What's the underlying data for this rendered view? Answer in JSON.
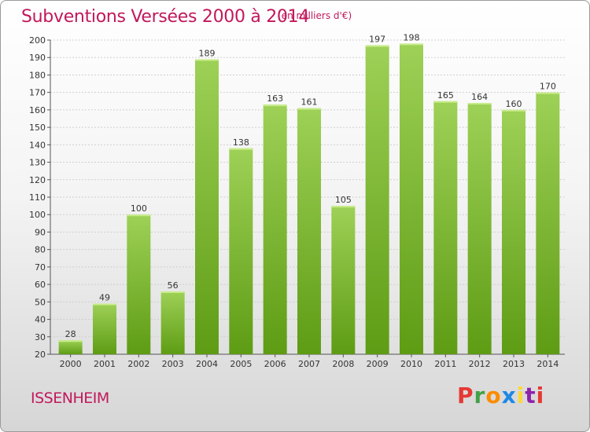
{
  "header": {
    "title": "Subventions Versées 2000 à 2014",
    "subtitle": "(en milliers d'€)"
  },
  "footer": {
    "commune": "ISSENHEIM",
    "logo_text": "Proxiti",
    "logo_colors": [
      "#e53935",
      "#43a047",
      "#fb8c00",
      "#1e88e5",
      "#fdd835",
      "#8e24aa",
      "#e53935"
    ]
  },
  "colors": {
    "title": "#c2185b",
    "bar_top": "#9ed157",
    "bar_bottom": "#5e9c14",
    "grid": "#cfcfcf"
  },
  "chart_data": {
    "type": "bar",
    "title": "Subventions Versées 2000 à 2014",
    "categories": [
      "2000",
      "2001",
      "2002",
      "2003",
      "2004",
      "2005",
      "2006",
      "2007",
      "2008",
      "2009",
      "2010",
      "2011",
      "2012",
      "2013",
      "2014"
    ],
    "values": [
      28,
      49,
      100,
      56,
      189,
      138,
      163,
      161,
      105,
      197,
      198,
      165,
      164,
      160,
      170
    ],
    "ylim": [
      20,
      200
    ],
    "yticks": [
      20,
      30,
      40,
      50,
      60,
      70,
      80,
      90,
      100,
      110,
      120,
      130,
      140,
      150,
      160,
      170,
      180,
      190,
      200
    ],
    "grid": true,
    "xlabel": "",
    "ylabel": ""
  }
}
